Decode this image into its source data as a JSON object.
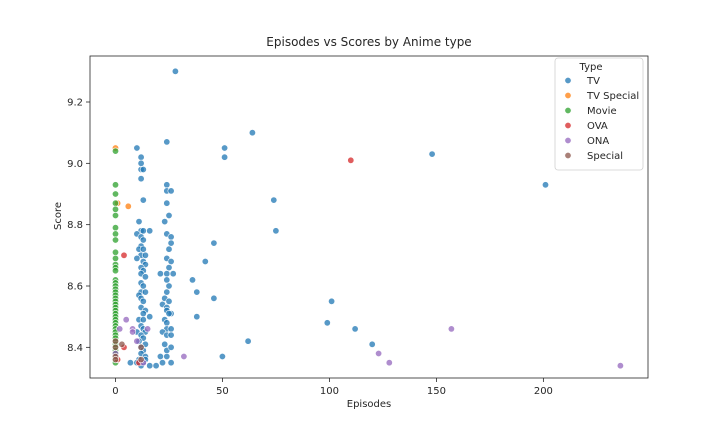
{
  "chart_data": {
    "type": "scatter",
    "title": "Episodes vs Scores by Anime type",
    "xlabel": "Episodes",
    "ylabel": "Score",
    "xlim": [
      -11.9,
      248.9
    ],
    "ylim": [
      8.3,
      9.35
    ],
    "xticks": [
      0,
      50,
      100,
      150,
      200
    ],
    "yticks": [
      8.4,
      8.6,
      8.8,
      9.0,
      9.2
    ],
    "grid": false,
    "legend_title": "Type",
    "legend_position": "top-right",
    "series": [
      {
        "name": "TV",
        "color": "#1f77b4",
        "points": [
          [
            28,
            9.3
          ],
          [
            64,
            9.1
          ],
          [
            51,
            9.05
          ],
          [
            24,
            9.07
          ],
          [
            51,
            9.02
          ],
          [
            148,
            9.03
          ],
          [
            201,
            8.93
          ],
          [
            10,
            9.05
          ],
          [
            12,
            9.02
          ],
          [
            12,
            9.0
          ],
          [
            12,
            8.98
          ],
          [
            13,
            8.98
          ],
          [
            12,
            8.95
          ],
          [
            13,
            8.88
          ],
          [
            24,
            8.93
          ],
          [
            24,
            8.91
          ],
          [
            26,
            8.91
          ],
          [
            74,
            8.88
          ],
          [
            75,
            8.78
          ],
          [
            24,
            8.87
          ],
          [
            25,
            8.83
          ],
          [
            23,
            8.81
          ],
          [
            11,
            8.81
          ],
          [
            12,
            8.78
          ],
          [
            13,
            8.78
          ],
          [
            16,
            8.78
          ],
          [
            10,
            8.77
          ],
          [
            12,
            8.76
          ],
          [
            13,
            8.75
          ],
          [
            24,
            8.77
          ],
          [
            26,
            8.76
          ],
          [
            46,
            8.74
          ],
          [
            12,
            8.73
          ],
          [
            11,
            8.72
          ],
          [
            13,
            8.72
          ],
          [
            26,
            8.74
          ],
          [
            25,
            8.72
          ],
          [
            12,
            8.7
          ],
          [
            14,
            8.7
          ],
          [
            10,
            8.69
          ],
          [
            13,
            8.68
          ],
          [
            14,
            8.67
          ],
          [
            24,
            8.69
          ],
          [
            26,
            8.68
          ],
          [
            42,
            8.68
          ],
          [
            12,
            8.66
          ],
          [
            13,
            8.65
          ],
          [
            25,
            8.66
          ],
          [
            12,
            8.64
          ],
          [
            14,
            8.63
          ],
          [
            21,
            8.64
          ],
          [
            24,
            8.64
          ],
          [
            27,
            8.64
          ],
          [
            36,
            8.62
          ],
          [
            12,
            8.61
          ],
          [
            13,
            8.6
          ],
          [
            24,
            8.62
          ],
          [
            25,
            8.6
          ],
          [
            12,
            8.58
          ],
          [
            11,
            8.57
          ],
          [
            14,
            8.58
          ],
          [
            24,
            8.58
          ],
          [
            38,
            8.58
          ],
          [
            46,
            8.56
          ],
          [
            12,
            8.56
          ],
          [
            13,
            8.55
          ],
          [
            23,
            8.56
          ],
          [
            25,
            8.55
          ],
          [
            22,
            8.54
          ],
          [
            24,
            8.53
          ],
          [
            101,
            8.55
          ],
          [
            12,
            8.53
          ],
          [
            14,
            8.52
          ],
          [
            13,
            8.51
          ],
          [
            24,
            8.52
          ],
          [
            26,
            8.51
          ],
          [
            16,
            8.5
          ],
          [
            38,
            8.5
          ],
          [
            11,
            8.49
          ],
          [
            13,
            8.49
          ],
          [
            23,
            8.49
          ],
          [
            24,
            8.48
          ],
          [
            99,
            8.48
          ],
          [
            12,
            8.47
          ],
          [
            13,
            8.46
          ],
          [
            24,
            8.46
          ],
          [
            26,
            8.46
          ],
          [
            10,
            8.45
          ],
          [
            14,
            8.45
          ],
          [
            22,
            8.45
          ],
          [
            112,
            8.46
          ],
          [
            12,
            8.44
          ],
          [
            13,
            8.43
          ],
          [
            24,
            8.44
          ],
          [
            26,
            8.44
          ],
          [
            11,
            8.42
          ],
          [
            14,
            8.41
          ],
          [
            23,
            8.41
          ],
          [
            62,
            8.42
          ],
          [
            120,
            8.41
          ],
          [
            12,
            8.4
          ],
          [
            13,
            8.39
          ],
          [
            24,
            8.39
          ],
          [
            26,
            8.4
          ],
          [
            12,
            8.38
          ],
          [
            14,
            8.37
          ],
          [
            21,
            8.37
          ],
          [
            24,
            8.37
          ],
          [
            50,
            8.37
          ],
          [
            11,
            8.36
          ],
          [
            13,
            8.35
          ],
          [
            26,
            8.35
          ],
          [
            12,
            8.34
          ],
          [
            16,
            8.34
          ],
          [
            19,
            8.34
          ],
          [
            22,
            8.35
          ],
          [
            10,
            8.35
          ],
          [
            14,
            8.36
          ],
          [
            7,
            8.35
          ],
          [
            25,
            8.51
          ]
        ]
      },
      {
        "name": "TV Special",
        "color": "#ff7f0e",
        "points": [
          [
            0,
            9.05
          ],
          [
            1,
            8.87
          ],
          [
            6,
            8.86
          ]
        ]
      },
      {
        "name": "Movie",
        "color": "#2ca02c",
        "points": [
          [
            0,
            9.04
          ],
          [
            0,
            8.93
          ],
          [
            0,
            8.9
          ],
          [
            0,
            8.87
          ],
          [
            0,
            8.85
          ],
          [
            0,
            8.83
          ],
          [
            0,
            8.79
          ],
          [
            0,
            8.77
          ],
          [
            0,
            8.75
          ],
          [
            0,
            8.71
          ],
          [
            0,
            8.69
          ],
          [
            0,
            8.67
          ],
          [
            0,
            8.66
          ],
          [
            0,
            8.65
          ],
          [
            0,
            8.62
          ],
          [
            0,
            8.61
          ],
          [
            0,
            8.6
          ],
          [
            0,
            8.59
          ],
          [
            0,
            8.58
          ],
          [
            0,
            8.57
          ],
          [
            0,
            8.56
          ],
          [
            0,
            8.55
          ],
          [
            0,
            8.54
          ],
          [
            0,
            8.53
          ],
          [
            0,
            8.52
          ],
          [
            0,
            8.51
          ],
          [
            0,
            8.5
          ],
          [
            0,
            8.49
          ],
          [
            0,
            8.48
          ],
          [
            0,
            8.47
          ],
          [
            0,
            8.46
          ],
          [
            0,
            8.45
          ],
          [
            0,
            8.44
          ],
          [
            0,
            8.43
          ],
          [
            0,
            8.42
          ],
          [
            0,
            8.41
          ],
          [
            0,
            8.4
          ],
          [
            0,
            8.39
          ],
          [
            0,
            8.38
          ],
          [
            0,
            8.37
          ],
          [
            0,
            8.36
          ],
          [
            0,
            8.35
          ]
        ]
      },
      {
        "name": "OVA",
        "color": "#d62728",
        "points": [
          [
            110,
            9.01
          ],
          [
            4,
            8.7
          ],
          [
            4,
            8.4
          ],
          [
            11,
            8.35
          ],
          [
            1,
            8.36
          ]
        ]
      },
      {
        "name": "ONA",
        "color": "#9467bd",
        "points": [
          [
            157,
            8.46
          ],
          [
            236,
            8.34
          ],
          [
            123,
            8.38
          ],
          [
            128,
            8.35
          ],
          [
            32,
            8.37
          ],
          [
            15,
            8.46
          ],
          [
            8,
            8.46
          ],
          [
            8,
            8.45
          ],
          [
            10,
            8.42
          ],
          [
            2,
            8.46
          ],
          [
            0,
            8.38
          ],
          [
            13,
            8.35
          ],
          [
            5,
            8.49
          ]
        ]
      },
      {
        "name": "Special",
        "color": "#8c564b",
        "points": [
          [
            0,
            8.42
          ],
          [
            0,
            8.4
          ],
          [
            0,
            8.37
          ],
          [
            0,
            8.36
          ],
          [
            12,
            8.4
          ],
          [
            12,
            8.36
          ],
          [
            3,
            8.41
          ]
        ]
      }
    ]
  }
}
